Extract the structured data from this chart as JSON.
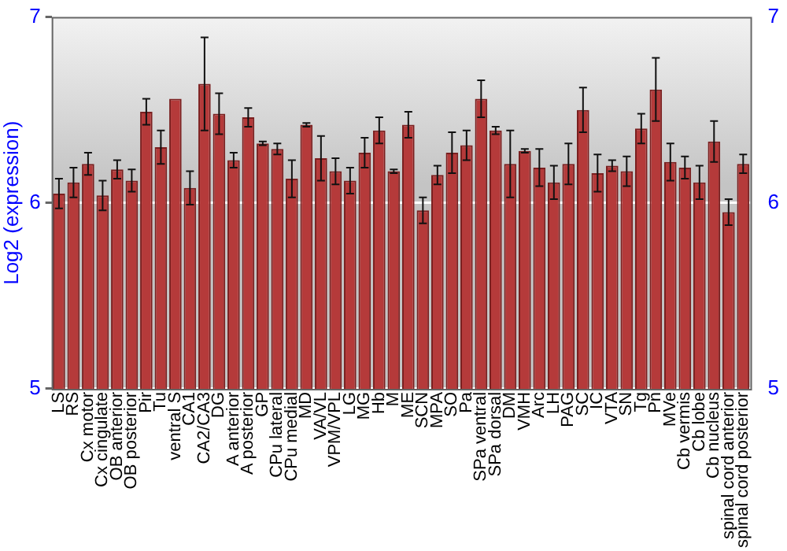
{
  "chart_data": {
    "type": "bar",
    "ylabel": "Log2 (expression)",
    "categories": [
      "LS",
      "RS",
      "Cx motor",
      "Cx cingulate",
      "OB anterior",
      "OB posterior",
      "Pir",
      "Tu",
      "ventral S",
      "CA1",
      "CA2/CA3",
      "DG",
      "A anterior",
      "A posterior",
      "GP",
      "CPu lateral",
      "CPu medial",
      "MD",
      "VA/VL",
      "VPM/VPL",
      "LG",
      "MG",
      "Hb",
      "M",
      "ME",
      "SCN",
      "MPA",
      "SO",
      "Pa",
      "SPa ventral",
      "SPa dorsal",
      "DM",
      "VMH",
      "Arc",
      "LH",
      "PAG",
      "SC",
      "IC",
      "VTA",
      "SN",
      "Tg",
      "Pn",
      "MVe",
      "Cb vermis",
      "Cb lobe",
      "Cb nucleus",
      "spinal cord anterior",
      "spinal cord posterior"
    ],
    "values": [
      6.05,
      6.11,
      6.21,
      6.04,
      6.18,
      6.12,
      6.49,
      6.3,
      6.56,
      6.08,
      6.64,
      6.48,
      6.23,
      6.46,
      6.32,
      6.29,
      6.13,
      6.42,
      6.24,
      6.17,
      6.12,
      6.27,
      6.39,
      6.17,
      6.42,
      5.96,
      6.15,
      6.27,
      6.31,
      6.56,
      6.39,
      6.21,
      6.28,
      6.19,
      6.11,
      6.21,
      6.5,
      6.16,
      6.2,
      6.17,
      6.4,
      6.61,
      6.22,
      6.19,
      6.11,
      6.33,
      5.95,
      6.21
    ],
    "errors": [
      0.08,
      0.08,
      0.06,
      0.08,
      0.05,
      0.06,
      0.07,
      0.09,
      null,
      0.09,
      0.25,
      0.11,
      0.04,
      0.05,
      0.01,
      0.03,
      0.1,
      0.01,
      0.12,
      0.07,
      0.07,
      0.08,
      0.07,
      0.01,
      0.07,
      0.07,
      0.05,
      0.11,
      0.08,
      0.1,
      0.02,
      0.18,
      0.01,
      0.1,
      0.09,
      0.11,
      0.12,
      0.1,
      0.03,
      0.08,
      0.08,
      0.17,
      0.1,
      0.06,
      0.09,
      0.11,
      0.07,
      0.05
    ],
    "color": "#b53a3a",
    "ylim": [
      5,
      7
    ],
    "yticks": [
      5,
      6,
      7
    ],
    "y2lim": [
      5,
      7
    ],
    "y2ticks": [
      5,
      6,
      7
    ],
    "grid": "y",
    "legend": false
  }
}
